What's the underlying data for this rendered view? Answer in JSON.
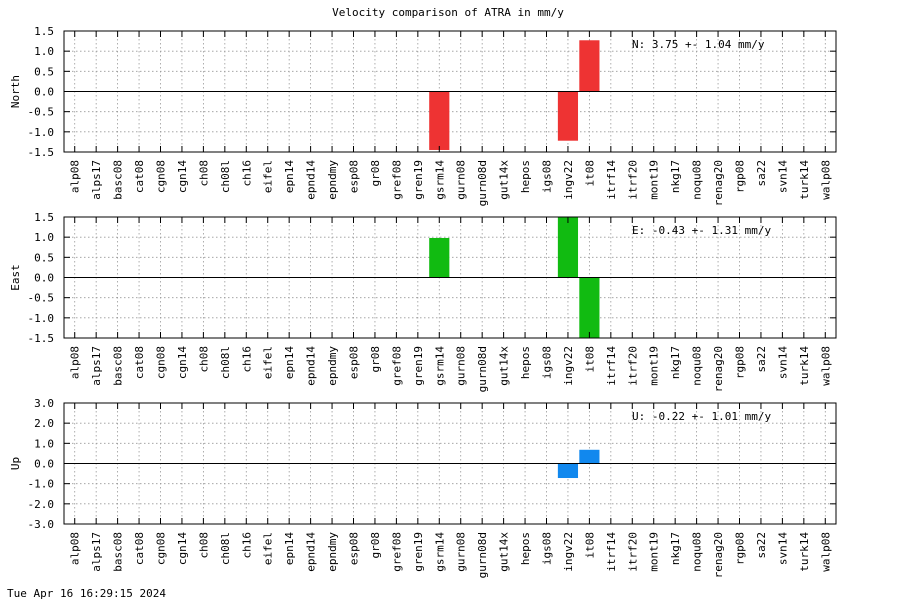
{
  "title": "Velocity comparison of ATRA in mm/y",
  "footer": "Tue Apr 16 16:29:15 2024",
  "colors": {
    "north": "#ee3333",
    "east": "#11bb11",
    "up": "#1188ee"
  },
  "chart_data": [
    {
      "type": "bar",
      "ylabel": "North",
      "stats": "N:   3.75 +-  1.04 mm/y",
      "ylim": [
        -1.5,
        1.5
      ],
      "yticks": [
        -1.5,
        -1.0,
        -0.5,
        0.0,
        0.5,
        1.0,
        1.5
      ],
      "ytick_labels": [
        "-1.5",
        "-1.0",
        "-0.5",
        "0.0",
        "0.5",
        "1.0",
        "1.5"
      ],
      "categories": [
        "alp08",
        "alps17",
        "basc08",
        "cat08",
        "cgn08",
        "cgn14",
        "ch08",
        "ch08l",
        "ch16",
        "eifel",
        "epn14",
        "epnd14",
        "epndmy",
        "esp08",
        "gr08",
        "gref08",
        "gren19",
        "gsrm14",
        "gurn08",
        "gurn08d",
        "gut14x",
        "hepos",
        "igs08",
        "ingv22",
        "it08",
        "itrf14",
        "itrf20",
        "mont19",
        "nkg17",
        "noqu08",
        "renag20",
        "rgp08",
        "sa22",
        "svn14",
        "turk14",
        "walp08"
      ],
      "values": [
        null,
        null,
        null,
        null,
        null,
        null,
        null,
        null,
        null,
        null,
        null,
        null,
        null,
        null,
        null,
        null,
        null,
        -1.45,
        null,
        null,
        null,
        null,
        null,
        -1.22,
        1.27,
        null,
        null,
        null,
        null,
        null,
        null,
        null,
        null,
        null,
        null,
        null
      ],
      "color_key": "north",
      "grid": true
    },
    {
      "type": "bar",
      "ylabel": "East",
      "stats": "E:  -0.43 +-  1.31 mm/y",
      "ylim": [
        -1.5,
        1.5
      ],
      "yticks": [
        -1.5,
        -1.0,
        -0.5,
        0.0,
        0.5,
        1.0,
        1.5
      ],
      "ytick_labels": [
        "-1.5",
        "-1.0",
        "-0.5",
        "0.0",
        "0.5",
        "1.0",
        "1.5"
      ],
      "categories": [
        "alp08",
        "alps17",
        "basc08",
        "cat08",
        "cgn08",
        "cgn14",
        "ch08",
        "ch08l",
        "ch16",
        "eifel",
        "epn14",
        "epnd14",
        "epndmy",
        "esp08",
        "gr08",
        "gref08",
        "gren19",
        "gsrm14",
        "gurn08",
        "gurn08d",
        "gut14x",
        "hepos",
        "igs08",
        "ingv22",
        "it08",
        "itrf14",
        "itrf20",
        "mont19",
        "nkg17",
        "noqu08",
        "renag20",
        "rgp08",
        "sa22",
        "svn14",
        "turk14",
        "walp08"
      ],
      "values": [
        null,
        null,
        null,
        null,
        null,
        null,
        null,
        null,
        null,
        null,
        null,
        null,
        null,
        null,
        null,
        null,
        null,
        0.98,
        null,
        null,
        null,
        null,
        null,
        1.5,
        -1.5,
        null,
        null,
        null,
        null,
        null,
        null,
        null,
        null,
        null,
        null,
        null
      ],
      "color_key": "east",
      "grid": true
    },
    {
      "type": "bar",
      "ylabel": "Up",
      "stats": "U:  -0.22 +-  1.01 mm/y",
      "ylim": [
        -3.0,
        3.0
      ],
      "yticks": [
        -3.0,
        -2.0,
        -1.0,
        0.0,
        1.0,
        2.0,
        3.0
      ],
      "ytick_labels": [
        "-3.0",
        "-2.0",
        "-1.0",
        "0.0",
        "1.0",
        "2.0",
        "3.0"
      ],
      "categories": [
        "alp08",
        "alps17",
        "basc08",
        "cat08",
        "cgn08",
        "cgn14",
        "ch08",
        "ch08l",
        "ch16",
        "eifel",
        "epn14",
        "epnd14",
        "epndmy",
        "esp08",
        "gr08",
        "gref08",
        "gren19",
        "gsrm14",
        "gurn08",
        "gurn08d",
        "gut14x",
        "hepos",
        "igs08",
        "ingv22",
        "it08",
        "itrf14",
        "itrf20",
        "mont19",
        "nkg17",
        "noqu08",
        "renag20",
        "rgp08",
        "sa22",
        "svn14",
        "turk14",
        "walp08"
      ],
      "values": [
        null,
        null,
        null,
        null,
        null,
        null,
        null,
        null,
        null,
        null,
        null,
        null,
        null,
        null,
        null,
        null,
        null,
        null,
        null,
        null,
        null,
        null,
        null,
        -0.72,
        0.68,
        null,
        null,
        null,
        null,
        null,
        null,
        null,
        null,
        null,
        null,
        null
      ],
      "color_key": "up",
      "grid": true
    }
  ]
}
